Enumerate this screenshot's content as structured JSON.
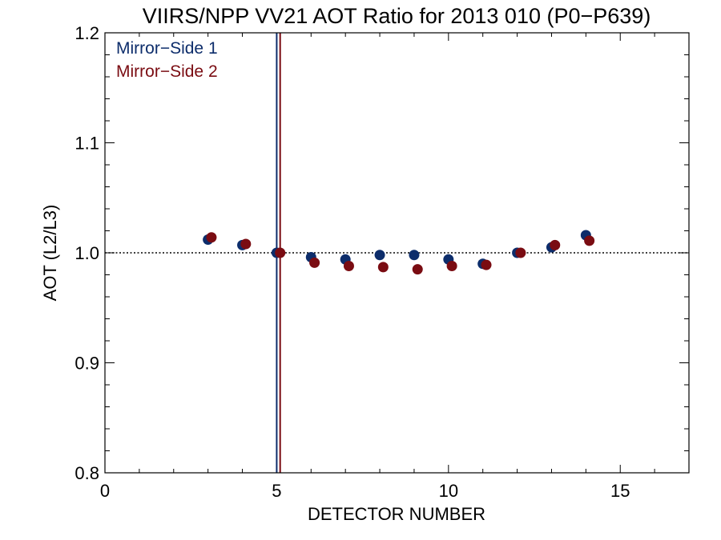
{
  "chart_data": {
    "type": "scatter",
    "title": "VIIRS/NPP VV21 AOT Ratio for 2013 010 (P0−P639)",
    "xlabel": "DETECTOR NUMBER",
    "ylabel": "AOT (L2/L3)",
    "xlim": [
      0,
      17
    ],
    "ylim": [
      0.8,
      1.2
    ],
    "x_ticks": [
      0,
      5,
      10,
      15
    ],
    "x_tick_labels": [
      "0",
      "5",
      "10",
      "15"
    ],
    "y_ticks": [
      0.8,
      0.9,
      1.0,
      1.1,
      1.2
    ],
    "y_tick_labels": [
      "0.8",
      "0.9",
      "1.0",
      "1.1",
      "1.2"
    ],
    "reference_line": {
      "y": 1.0,
      "style": "dotted"
    },
    "vertical_lines": [
      {
        "x": 5.0,
        "color": "#0d2d6b"
      },
      {
        "x": 5.1,
        "color": "#7a0c12"
      }
    ],
    "legend_position": "top-left",
    "series": [
      {
        "name": "Mirror−Side 1",
        "color": "#0d2d6b",
        "points": [
          [
            3,
            1.012
          ],
          [
            4,
            1.007
          ],
          [
            5,
            1.0
          ],
          [
            6,
            0.996
          ],
          [
            7,
            0.994
          ],
          [
            8,
            0.998
          ],
          [
            9,
            0.998
          ],
          [
            10,
            0.994
          ],
          [
            11,
            0.99
          ],
          [
            12,
            1.0
          ],
          [
            13,
            1.005
          ],
          [
            14,
            1.016
          ]
        ]
      },
      {
        "name": "Mirror−Side 2",
        "color": "#7a0c12",
        "points": [
          [
            3.1,
            1.014
          ],
          [
            4.1,
            1.008
          ],
          [
            5.1,
            1.0
          ],
          [
            6.1,
            0.991
          ],
          [
            7.1,
            0.988
          ],
          [
            8.1,
            0.987
          ],
          [
            9.1,
            0.985
          ],
          [
            10.1,
            0.988
          ],
          [
            11.1,
            0.989
          ],
          [
            12.1,
            1.0
          ],
          [
            13.1,
            1.007
          ],
          [
            14.1,
            1.011
          ]
        ]
      }
    ]
  }
}
